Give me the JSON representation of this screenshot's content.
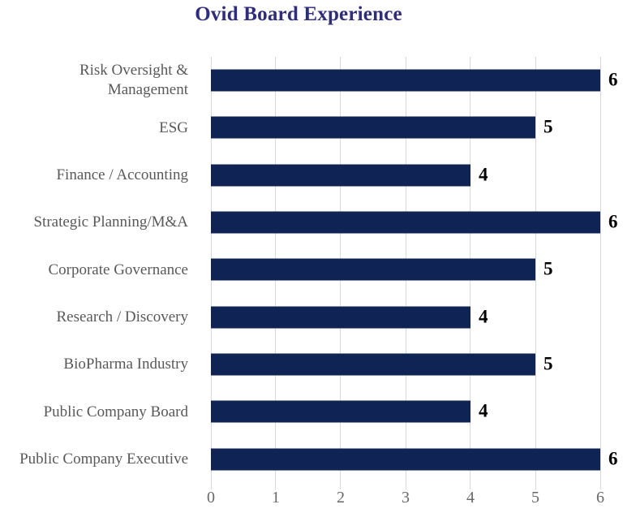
{
  "chart_data": {
    "type": "bar",
    "orientation": "horizontal",
    "title": "Ovid Board Experience",
    "categories": [
      "Risk Oversight &\nManagement",
      "ESG",
      "Finance / Accounting",
      "Strategic Planning/M&A",
      "Corporate Governance",
      "Research / Discovery",
      "BioPharma Industry",
      "Public Company Board",
      "Public Company Executive"
    ],
    "values": [
      6,
      5,
      4,
      6,
      5,
      4,
      5,
      4,
      6
    ],
    "data_labels": [
      6,
      5,
      4,
      6,
      5,
      4,
      5,
      4,
      6
    ],
    "xlabel": "",
    "ylabel": "",
    "xlim": [
      0,
      6
    ],
    "xticks": [
      0,
      1,
      2,
      3,
      4,
      5,
      6
    ],
    "grid": "vertical-only",
    "legend": "none",
    "colors": {
      "bar": "#0F2455",
      "title": "#2E2B82",
      "category_label": "#595959",
      "tick_label": "#696969",
      "value_label": "#000000",
      "gridline": "#D9D9D9",
      "background": "#FFFFFF"
    }
  }
}
